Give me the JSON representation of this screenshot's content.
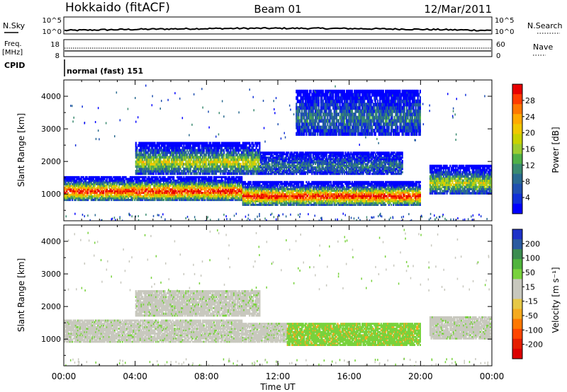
{
  "header": {
    "station": "Hokkaido (fitACF)",
    "beam": "Beam 01",
    "date": "12/Mar/2011"
  },
  "top_panels": {
    "nsky_label": "N.Sky",
    "nsky_ticks": [
      "10^5",
      "10^0"
    ],
    "nsearch_label": "N.Search",
    "nsearch_ticks": [
      "10^5",
      "10^0"
    ],
    "freq_label_1": "Freq.",
    "freq_label_2": "[MHz]",
    "freq_ticks": [
      "18",
      "8"
    ],
    "nave_label": "Nave",
    "nave_ticks": [
      "60",
      "0"
    ],
    "cpid_label": "CPID",
    "cpid_text": "normal (fast) 151"
  },
  "chart_data": [
    {
      "type": "heatmap",
      "name": "power",
      "xlabel": "",
      "ylabel": "Slant Range [km]",
      "x_ticks": [
        "00:00",
        "04:00",
        "08:00",
        "12:00",
        "16:00",
        "20:00",
        "00:00"
      ],
      "y_ticks": [
        1000,
        2000,
        3000,
        4000
      ],
      "ylim": [
        180,
        4500
      ],
      "colorbar": {
        "label": "Power [dB]",
        "ticks": [
          "28",
          "24",
          "20",
          "16",
          "12",
          "8",
          "4"
        ],
        "colors": [
          "#e80000",
          "#ff3c00",
          "#ff7800",
          "#ffaa00",
          "#f0c800",
          "#c8d200",
          "#9ccc30",
          "#50b048",
          "#3a8a70",
          "#2a6a90",
          "#2050b0",
          "#1030d8",
          "#0000ff"
        ]
      },
      "echo_bands": [
        {
          "t0": 0.0,
          "t1": 10.0,
          "r0": 800,
          "r1": 1550,
          "level": "high"
        },
        {
          "t0": 10.0,
          "t1": 20.0,
          "r0": 650,
          "r1": 1400,
          "level": "high"
        },
        {
          "t0": 20.5,
          "t1": 24.0,
          "r0": 1000,
          "r1": 1900,
          "level": "medium"
        },
        {
          "t0": 4.0,
          "t1": 11.0,
          "r0": 1600,
          "r1": 2600,
          "level": "medium"
        },
        {
          "t0": 11.0,
          "t1": 19.0,
          "r0": 1600,
          "r1": 2300,
          "level": "low"
        },
        {
          "t0": 13.0,
          "t1": 20.0,
          "r0": 2800,
          "r1": 4200,
          "level": "low"
        }
      ]
    },
    {
      "type": "heatmap",
      "name": "velocity",
      "xlabel": "Time UT",
      "ylabel": "Slant Range [km]",
      "x_ticks": [
        "00:00",
        "04:00",
        "08:00",
        "12:00",
        "16:00",
        "20:00",
        "00:00"
      ],
      "y_ticks": [
        1000,
        2000,
        3000,
        4000
      ],
      "ylim": [
        180,
        4500
      ],
      "colorbar": {
        "label": "Velocity [m s⁻¹]",
        "ticks": [
          "200",
          "100",
          "50",
          "15",
          "-15",
          "-50",
          "-100",
          "-200"
        ],
        "colors": [
          "#1e32c8",
          "#2a5aa0",
          "#3c8c50",
          "#50b43c",
          "#78d23c",
          "#c8c8be",
          "#c8c8be",
          "#e6c846",
          "#f5aa1e",
          "#ff7800",
          "#ff4600",
          "#e61e00",
          "#dc0000"
        ]
      },
      "echo_bands": [
        {
          "t0": 0.0,
          "t1": 10.0,
          "r0": 900,
          "r1": 1600,
          "level": "gray"
        },
        {
          "t0": 10.0,
          "t1": 12.5,
          "r0": 900,
          "r1": 1500,
          "level": "gray"
        },
        {
          "t0": 12.5,
          "t1": 20.0,
          "r0": 800,
          "r1": 1500,
          "level": "green"
        },
        {
          "t0": 20.5,
          "t1": 24.0,
          "r0": 1000,
          "r1": 1700,
          "level": "gray"
        },
        {
          "t0": 4.0,
          "t1": 11.0,
          "r0": 1700,
          "r1": 2500,
          "level": "gray"
        }
      ]
    }
  ]
}
